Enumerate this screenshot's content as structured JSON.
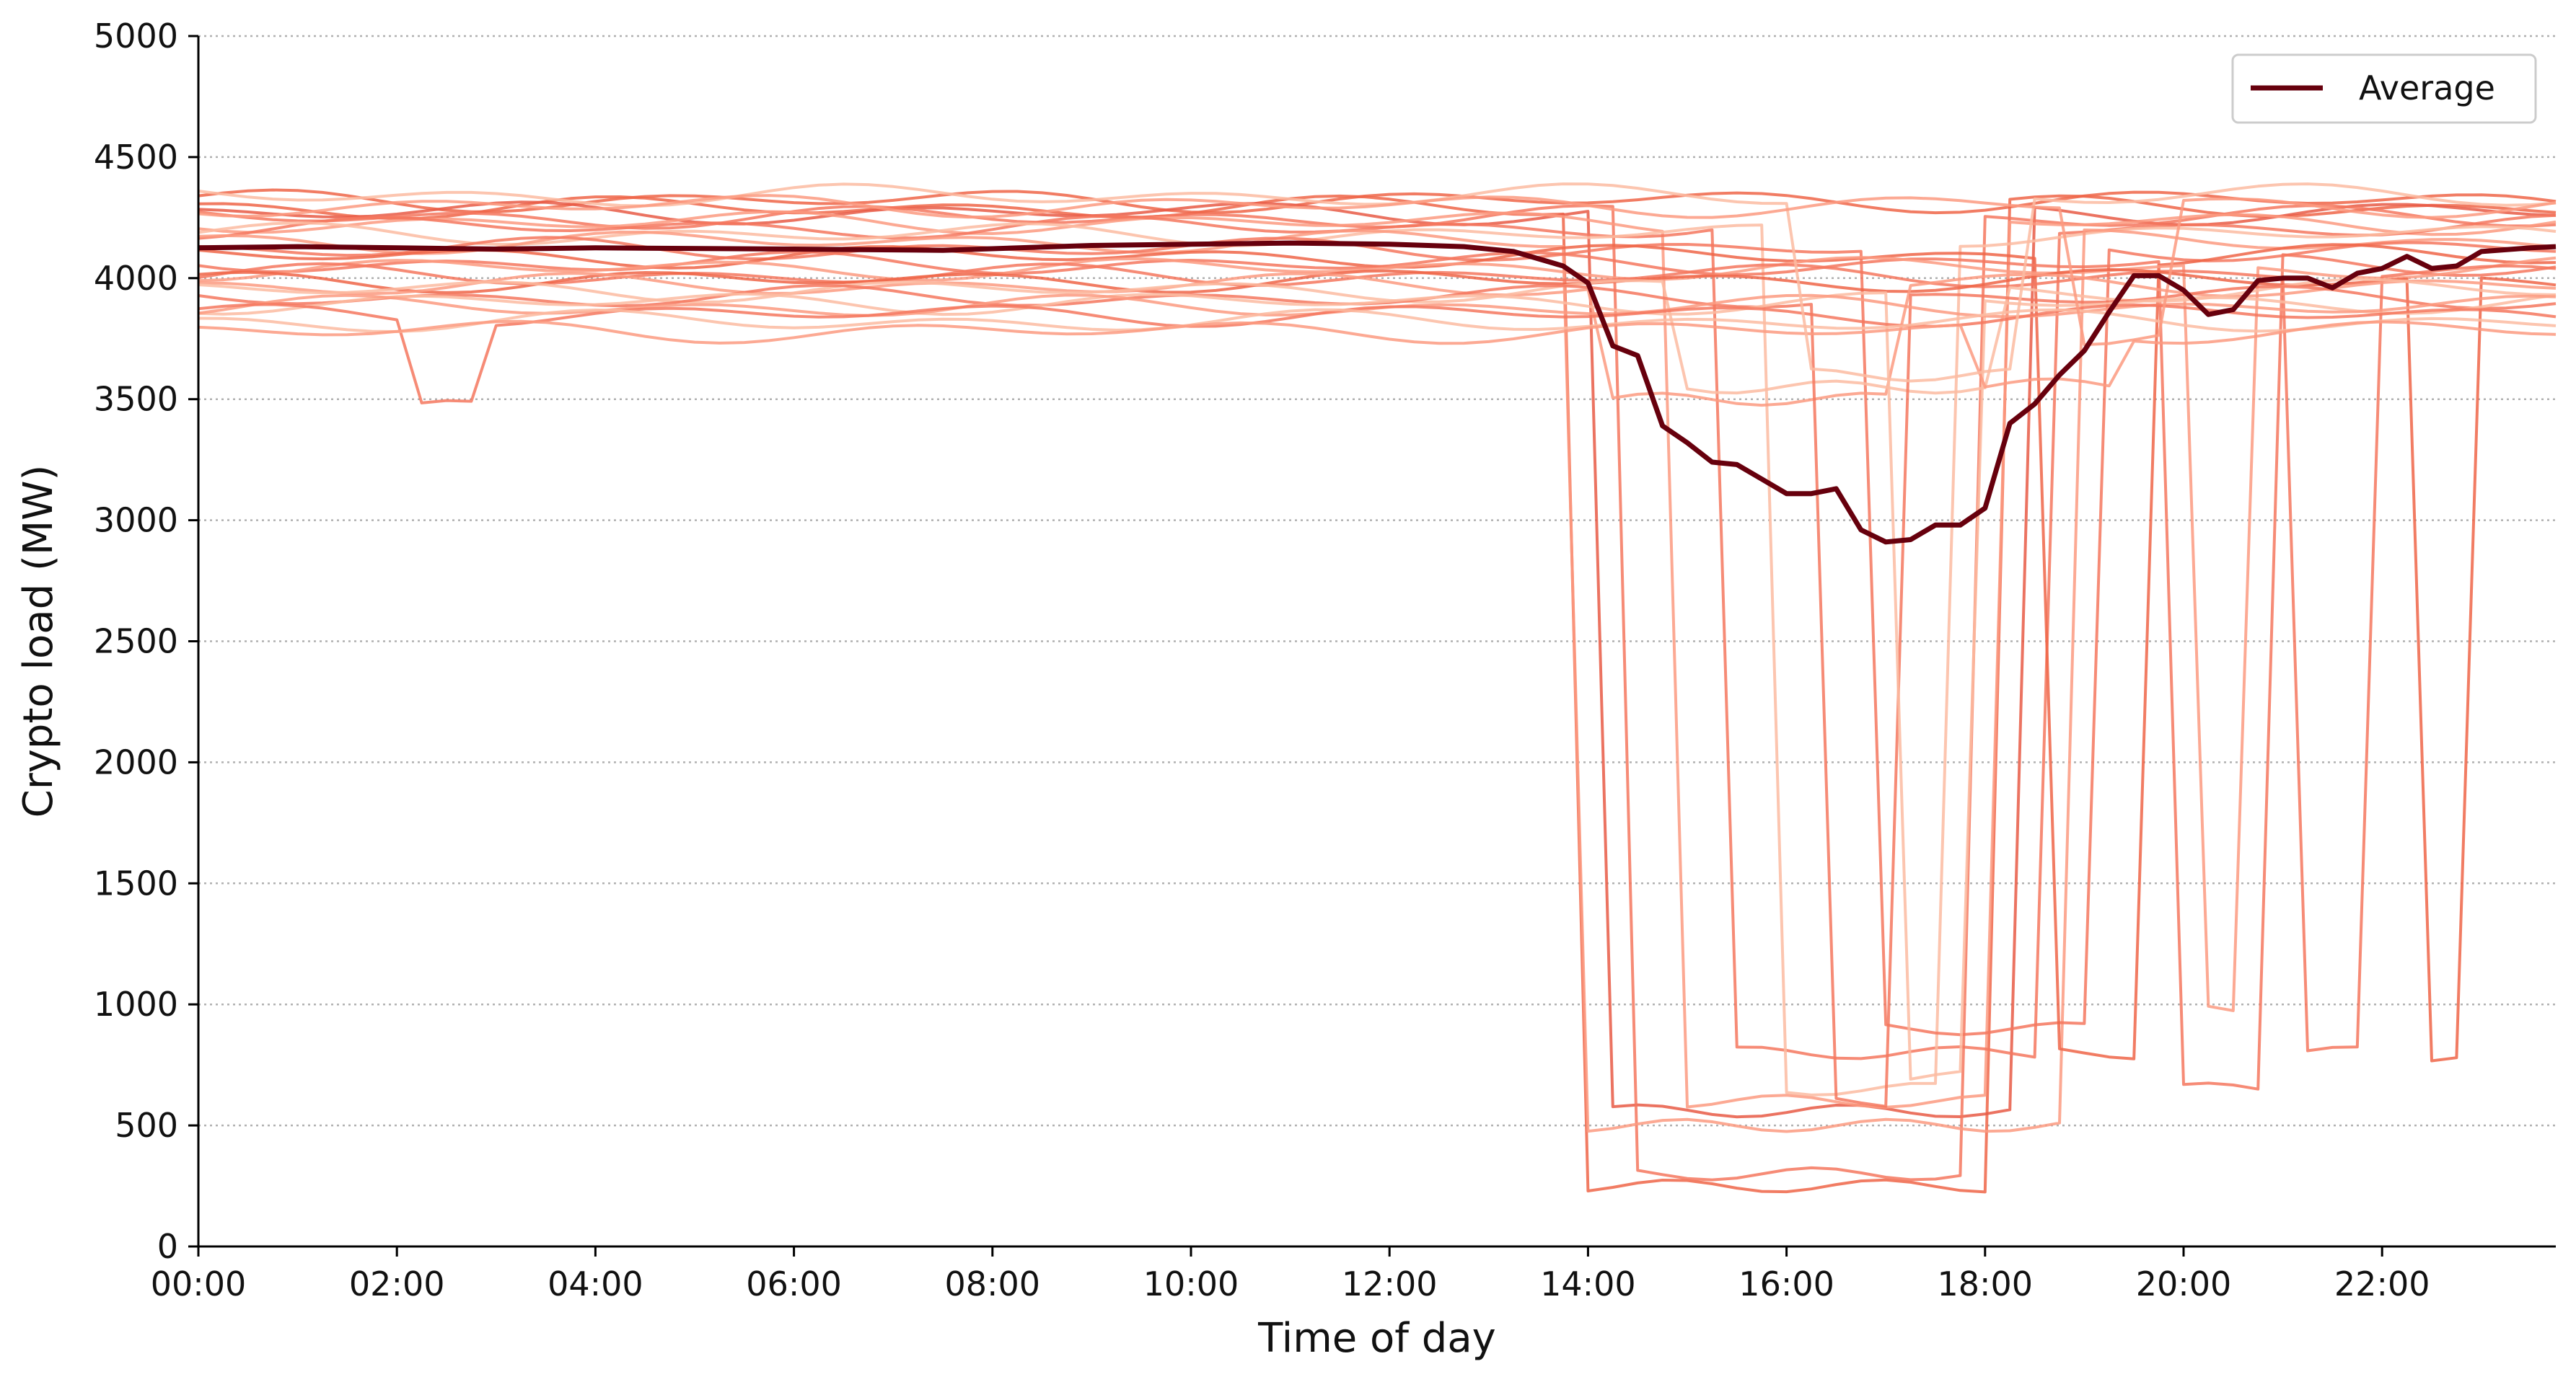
{
  "chart_data": {
    "type": "line",
    "xlabel": "Time of day",
    "ylabel": "Crypto load (MW)",
    "xlim": [
      0,
      23.75
    ],
    "ylim": [
      0,
      5000
    ],
    "x_ticks": [
      "00:00",
      "02:00",
      "04:00",
      "06:00",
      "08:00",
      "10:00",
      "12:00",
      "14:00",
      "16:00",
      "18:00",
      "20:00",
      "22:00"
    ],
    "y_ticks": [
      "0",
      "500",
      "1000",
      "1500",
      "2000",
      "2500",
      "3000",
      "3500",
      "4000",
      "4500",
      "5000"
    ],
    "grid": "y-dotted",
    "legend": {
      "position": "top-right",
      "entries": [
        "Average"
      ]
    },
    "colors": {
      "average": "#67000d",
      "days": [
        "#ef6548",
        "#f4775e",
        "#fb9a80",
        "#fcbba1",
        "#e85a45"
      ]
    },
    "time_step_hours": 0.25,
    "average": {
      "name": "Average",
      "points": [
        [
          0,
          4125
        ],
        [
          1,
          4130
        ],
        [
          2,
          4125
        ],
        [
          3,
          4120
        ],
        [
          4,
          4125
        ],
        [
          6,
          4120
        ],
        [
          7.5,
          4115
        ],
        [
          9,
          4135
        ],
        [
          10,
          4140
        ],
        [
          11,
          4145
        ],
        [
          12,
          4140
        ],
        [
          12.75,
          4130
        ],
        [
          13.25,
          4110
        ],
        [
          13.75,
          4050
        ],
        [
          14,
          3980
        ],
        [
          14.25,
          3720
        ],
        [
          14.5,
          3680
        ],
        [
          14.75,
          3390
        ],
        [
          15,
          3320
        ],
        [
          15.25,
          3240
        ],
        [
          15.5,
          3230
        ],
        [
          15.75,
          3170
        ],
        [
          16,
          3110
        ],
        [
          16.25,
          3110
        ],
        [
          16.5,
          3130
        ],
        [
          16.75,
          2960
        ],
        [
          17,
          2910
        ],
        [
          17.25,
          2920
        ],
        [
          17.5,
          2980
        ],
        [
          17.75,
          2980
        ],
        [
          18,
          3050
        ],
        [
          18.25,
          3400
        ],
        [
          18.5,
          3480
        ],
        [
          18.75,
          3600
        ],
        [
          19,
          3700
        ],
        [
          19.25,
          3860
        ],
        [
          19.5,
          4010
        ],
        [
          19.75,
          4010
        ],
        [
          20,
          3950
        ],
        [
          20.25,
          3850
        ],
        [
          20.5,
          3870
        ],
        [
          20.75,
          3990
        ],
        [
          21,
          4000
        ],
        [
          21.25,
          4000
        ],
        [
          21.5,
          3960
        ],
        [
          21.75,
          4020
        ],
        [
          22,
          4040
        ],
        [
          22.25,
          4090
        ],
        [
          22.5,
          4040
        ],
        [
          22.75,
          4050
        ],
        [
          23,
          4110
        ],
        [
          23.5,
          4125
        ],
        [
          23.75,
          4130
        ]
      ]
    },
    "daily_profiles": [
      {
        "base": 4320,
        "dip_start": 0,
        "dip_end": 0,
        "dip_level": 4320,
        "shade": 0
      },
      {
        "base": 4290,
        "dip_start": 14.0,
        "dip_end": 18.0,
        "dip_level": 250,
        "shade": 0
      },
      {
        "base": 4270,
        "dip_start": 14.25,
        "dip_end": 18.25,
        "dip_level": 560,
        "shade": 4
      },
      {
        "base": 4250,
        "dip_start": 14.5,
        "dip_end": 17.75,
        "dip_level": 300,
        "shade": 1
      },
      {
        "base": 4230,
        "dip_start": 15.0,
        "dip_end": 18.0,
        "dip_level": 600,
        "shade": 2
      },
      {
        "base": 4210,
        "dip_start": 15.5,
        "dip_end": 18.5,
        "dip_level": 800,
        "shade": 1
      },
      {
        "base": 4180,
        "dip_start": 16.0,
        "dip_end": 17.5,
        "dip_level": 650,
        "shade": 3
      },
      {
        "base": 4150,
        "dip_start": 14.0,
        "dip_end": 18.75,
        "dip_level": 500,
        "shade": 2
      },
      {
        "base": 4120,
        "dip_start": 17.0,
        "dip_end": 19.0,
        "dip_level": 900,
        "shade": 1
      },
      {
        "base": 4090,
        "dip_start": 18.75,
        "dip_end": 19.5,
        "dip_level": 800,
        "shade": 0
      },
      {
        "base": 4060,
        "dip_start": 20.0,
        "dip_end": 20.75,
        "dip_level": 650,
        "shade": 1
      },
      {
        "base": 4040,
        "dip_start": 20.25,
        "dip_end": 20.5,
        "dip_level": 980,
        "shade": 2
      },
      {
        "base": 4010,
        "dip_start": 21.25,
        "dip_end": 21.75,
        "dip_level": 800,
        "shade": 1
      },
      {
        "base": 3990,
        "dip_start": 22.5,
        "dip_end": 22.75,
        "dip_level": 790,
        "shade": 0
      },
      {
        "base": 3970,
        "dip_start": 14.25,
        "dip_end": 17.0,
        "dip_level": 3500,
        "shade": 2
      },
      {
        "base": 3950,
        "dip_start": 15.0,
        "dip_end": 18.0,
        "dip_level": 3550,
        "shade": 3
      },
      {
        "base": 3920,
        "dip_start": 16.5,
        "dip_end": 17.0,
        "dip_level": 600,
        "shade": 1
      },
      {
        "base": 3900,
        "dip_start": 17.25,
        "dip_end": 17.75,
        "dip_level": 700,
        "shade": 3
      },
      {
        "base": 3880,
        "dip_start": 0,
        "dip_end": 0,
        "dip_level": 3880,
        "shade": 2
      },
      {
        "base": 3850,
        "dip_start": 2.25,
        "dip_end": 2.75,
        "dip_level": 3470,
        "shade": 1
      },
      {
        "base": 3820,
        "dip_start": 0,
        "dip_end": 0,
        "dip_level": 3820,
        "shade": 3
      },
      {
        "base": 3780,
        "dip_start": 18.0,
        "dip_end": 19.25,
        "dip_level": 3560,
        "shade": 2
      },
      {
        "base": 4340,
        "dip_start": 16.25,
        "dip_end": 18.25,
        "dip_level": 3600,
        "shade": 3
      },
      {
        "base": 4300,
        "dip_start": 19.0,
        "dip_end": 19.75,
        "dip_level": 3750,
        "shade": 2
      }
    ]
  }
}
